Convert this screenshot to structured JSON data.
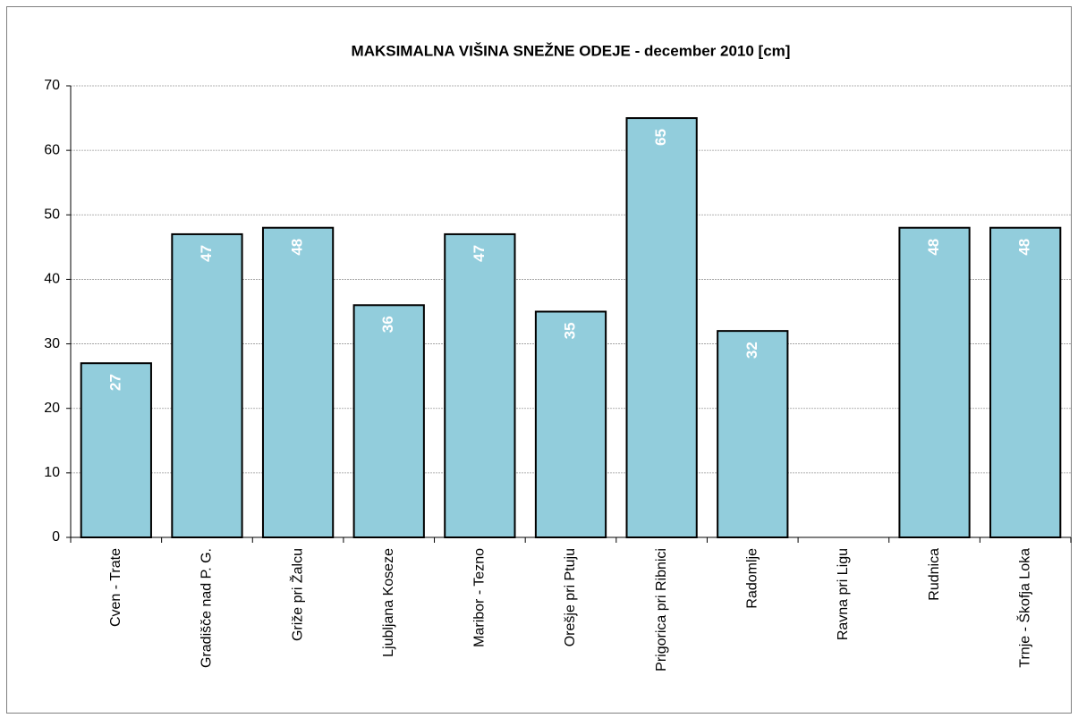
{
  "chart_data": {
    "type": "bar",
    "title": "MAKSIMALNA VIŠINA SNEŽNE ODEJE - december 2010 [cm]",
    "categories": [
      "Cven - Trate",
      "Gradišče nad P. G.",
      "Griže pri Žalcu",
      "Ljubljana Koseze",
      "Maribor - Tezno",
      "Orešje pri Ptuju",
      "Prigorica pri Ribnici",
      "Radomlje",
      "Ravna pri Ligu",
      "Rudnica",
      "Trnje - Škofja Loka"
    ],
    "values": [
      27,
      47,
      48,
      36,
      47,
      35,
      65,
      32,
      null,
      48,
      48
    ],
    "color": "#92cddc",
    "ylim": [
      0,
      70
    ],
    "yticks": [
      0,
      10,
      20,
      30,
      40,
      50,
      60,
      70
    ],
    "grid": true
  }
}
